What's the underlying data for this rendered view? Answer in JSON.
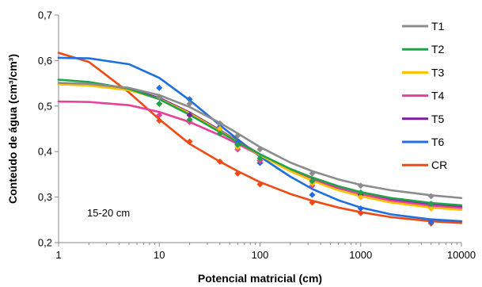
{
  "chart_data": {
    "type": "scatter",
    "xlabel": "Potencial matricial (cm)",
    "ylabel": "Conteúdo de água (cm³/cm³)",
    "annotation": "15-20 cm",
    "x_scale": "log",
    "xlim": [
      1,
      10000
    ],
    "ylim": [
      0.2,
      0.7
    ],
    "x_ticks": [
      "1",
      "10",
      "100",
      "1000",
      "10000"
    ],
    "y_ticks": [
      "0,2",
      "0,3",
      "0,4",
      "0,5",
      "0,6",
      "0,7"
    ],
    "grid": false,
    "legend_position": "right",
    "series": [
      {
        "name": "T1",
        "color": "#8c8c8c",
        "points": {
          "x": [
            10,
            20,
            40,
            60,
            100,
            330,
            1000,
            5000
          ],
          "y": [
            0.52,
            0.505,
            0.462,
            0.435,
            0.405,
            0.352,
            0.325,
            0.302
          ]
        },
        "curve": {
          "x": [
            1,
            2,
            5,
            10,
            20,
            40,
            60,
            100,
            200,
            330,
            600,
            1000,
            2000,
            5000,
            10000
          ],
          "y": [
            0.551,
            0.549,
            0.54,
            0.524,
            0.498,
            0.463,
            0.44,
            0.41,
            0.376,
            0.357,
            0.339,
            0.327,
            0.315,
            0.304,
            0.298
          ]
        }
      },
      {
        "name": "T2",
        "color": "#1fa34a",
        "points": {
          "x": [
            10,
            20,
            40,
            60,
            100,
            330,
            1000,
            5000
          ],
          "y": [
            0.505,
            0.47,
            0.44,
            0.415,
            0.385,
            0.335,
            0.31,
            0.285
          ]
        },
        "curve": {
          "x": [
            1,
            2,
            5,
            10,
            20,
            40,
            60,
            100,
            200,
            330,
            600,
            1000,
            2000,
            5000,
            10000
          ],
          "y": [
            0.558,
            0.553,
            0.538,
            0.515,
            0.481,
            0.443,
            0.421,
            0.394,
            0.362,
            0.343,
            0.324,
            0.311,
            0.298,
            0.287,
            0.282
          ]
        }
      },
      {
        "name": "T3",
        "color": "#ffc000",
        "points": {
          "x": [
            10,
            20,
            40,
            60,
            100,
            330,
            1000,
            5000
          ],
          "y": [
            0.505,
            0.47,
            0.45,
            0.41,
            0.385,
            0.33,
            0.3,
            0.275
          ]
        },
        "curve": {
          "x": [
            1,
            2,
            5,
            10,
            20,
            40,
            60,
            100,
            200,
            330,
            600,
            1000,
            2000,
            5000,
            10000
          ],
          "y": [
            0.548,
            0.545,
            0.535,
            0.516,
            0.484,
            0.445,
            0.422,
            0.392,
            0.357,
            0.336,
            0.315,
            0.302,
            0.288,
            0.277,
            0.272
          ]
        }
      },
      {
        "name": "T4",
        "color": "#e8409a",
        "points": {
          "x": [
            10,
            20,
            40,
            60,
            100,
            330,
            1000,
            5000
          ],
          "y": [
            0.48,
            0.465,
            0.44,
            0.405,
            0.38,
            0.325,
            0.3,
            0.28
          ]
        },
        "curve": {
          "x": [
            1,
            2,
            5,
            10,
            20,
            40,
            60,
            100,
            200,
            330,
            600,
            1000,
            2000,
            5000,
            10000
          ],
          "y": [
            0.51,
            0.509,
            0.502,
            0.487,
            0.465,
            0.436,
            0.417,
            0.392,
            0.36,
            0.341,
            0.321,
            0.307,
            0.292,
            0.281,
            0.276
          ]
        }
      },
      {
        "name": "T5",
        "color": "#7b1fa2",
        "points": {
          "x": [
            10,
            20,
            40,
            60,
            100,
            330,
            1000,
            5000
          ],
          "y": [
            0.52,
            0.48,
            0.45,
            0.415,
            0.38,
            0.335,
            0.305,
            0.285
          ]
        },
        "curve": {
          "x": [
            1,
            2,
            5,
            10,
            20,
            40,
            60,
            100,
            200,
            330,
            600,
            1000,
            2000,
            5000,
            10000
          ],
          "y": [
            0.548,
            0.546,
            0.537,
            0.518,
            0.486,
            0.447,
            0.423,
            0.394,
            0.36,
            0.34,
            0.32,
            0.307,
            0.294,
            0.283,
            0.278
          ]
        }
      },
      {
        "name": "T6",
        "color": "#1f6fe0",
        "points": {
          "x": [
            10,
            20,
            40,
            60,
            100,
            330,
            1000,
            5000
          ],
          "y": [
            0.54,
            0.515,
            0.455,
            0.42,
            0.375,
            0.305,
            0.275,
            0.245
          ]
        },
        "curve": {
          "x": [
            1,
            2,
            5,
            10,
            20,
            40,
            60,
            100,
            200,
            330,
            600,
            1000,
            2000,
            5000,
            10000
          ],
          "y": [
            0.606,
            0.605,
            0.592,
            0.562,
            0.513,
            0.458,
            0.427,
            0.389,
            0.345,
            0.318,
            0.293,
            0.277,
            0.262,
            0.251,
            0.247
          ]
        }
      },
      {
        "name": "CR",
        "color": "#f04a12",
        "points": {
          "x": [
            10,
            20,
            40,
            60,
            100,
            330,
            1000,
            5000
          ],
          "y": [
            0.468,
            0.422,
            0.378,
            0.352,
            0.328,
            0.288,
            0.265,
            0.242
          ]
        },
        "curve": {
          "x": [
            1,
            2,
            5,
            10,
            20,
            40,
            60,
            100,
            200,
            330,
            600,
            1000,
            2000,
            5000,
            10000
          ],
          "y": [
            0.617,
            0.597,
            0.53,
            0.471,
            0.417,
            0.378,
            0.357,
            0.333,
            0.307,
            0.292,
            0.277,
            0.267,
            0.256,
            0.247,
            0.243
          ]
        }
      }
    ]
  }
}
